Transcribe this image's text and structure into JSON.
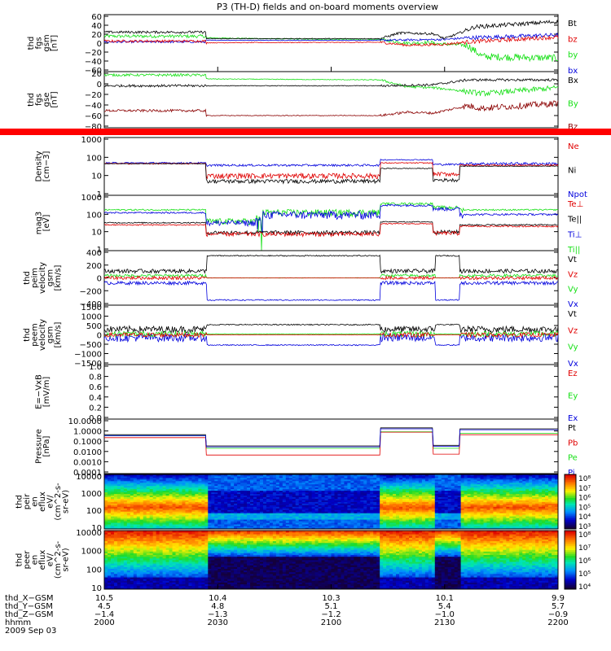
{
  "title": "P3 (TH-D) fields and on-board moments overview",
  "colors": {
    "black": "#000000",
    "red": "#e00000",
    "green": "#16e016",
    "blue": "#0000dd",
    "darkred": "#8b0000",
    "bar": "#ff0000"
  },
  "chart_data": [
    {
      "id": "fgs_gsm",
      "type": "line",
      "ylabel": [
        "thd",
        "fgs",
        "gsm",
        "[nT]"
      ],
      "yticks": [
        "60",
        "40",
        "20",
        "0",
        "−20",
        "−40",
        "−60"
      ],
      "ylim": [
        -75,
        65
      ],
      "legend": [
        {
          "name": "Bt",
          "color": "#000000"
        },
        {
          "name": "bz",
          "color": "#e00000"
        },
        {
          "name": "by",
          "color": "#16e016"
        },
        {
          "name": "bx",
          "color": "#0000dd"
        }
      ]
    },
    {
      "id": "fgs_gse",
      "type": "line",
      "ylabel": [
        "thd",
        "fgs",
        "gse",
        "[nT]"
      ],
      "yticks": [
        "20",
        "0",
        "−20",
        "−40",
        "−60",
        "−80"
      ],
      "ylim": [
        -90,
        25
      ],
      "legend": [
        {
          "name": "Bx",
          "color": "#000000"
        },
        {
          "name": "By",
          "color": "#16e016"
        },
        {
          "name": "Bz",
          "color": "#8b0000"
        }
      ]
    },
    {
      "id": "density",
      "type": "line",
      "ylabel": [
        "Density",
        "[cm−3]"
      ],
      "yticks": [
        "1000",
        "100",
        "10",
        "1"
      ],
      "ylim": [
        1,
        1500
      ],
      "yscale": "log",
      "legend": [
        {
          "name": "Ne",
          "color": "#e00000"
        },
        {
          "name": "Ni",
          "color": "#000000"
        },
        {
          "name": "Npot",
          "color": "#0000dd"
        }
      ]
    },
    {
      "id": "temperature",
      "type": "line",
      "ylabel": [
        "mag3",
        "[eV]"
      ],
      "yticks": [
        "1000",
        "100",
        "10",
        "1"
      ],
      "ylim": [
        1,
        1500
      ],
      "yscale": "log",
      "legend": [
        {
          "name": "Te⊥",
          "color": "#e00000"
        },
        {
          "name": "Te||",
          "color": "#000000"
        },
        {
          "name": "Ti⊥",
          "color": "#0000dd"
        },
        {
          "name": "Ti||",
          "color": "#16e016"
        }
      ]
    },
    {
      "id": "peim_velocity",
      "type": "line",
      "ylabel": [
        "thd",
        "peim",
        "velocity",
        "gsm",
        "[km/s]"
      ],
      "yticks": [
        "400",
        "200",
        "0",
        "−200",
        "−400"
      ],
      "ylim": [
        -480,
        480
      ],
      "legend": [
        {
          "name": "Vt",
          "color": "#000000"
        },
        {
          "name": "Vz",
          "color": "#e00000"
        },
        {
          "name": "Vy",
          "color": "#16e016"
        },
        {
          "name": "Vx",
          "color": "#0000dd"
        }
      ]
    },
    {
      "id": "peem_velocity",
      "type": "line",
      "ylabel": [
        "thd",
        "peem",
        "velocity",
        "gsm",
        "[km/s]"
      ],
      "yticks": [
        "1500",
        "1000",
        "500",
        "0",
        "−500",
        "−1000",
        "−1500"
      ],
      "ylim": [
        -1600,
        1600
      ],
      "legend": [
        {
          "name": "Vt",
          "color": "#000000"
        },
        {
          "name": "Vz",
          "color": "#e00000"
        },
        {
          "name": "Vy",
          "color": "#16e016"
        },
        {
          "name": "Vx",
          "color": "#0000dd"
        }
      ]
    },
    {
      "id": "efield",
      "type": "line",
      "ylabel": [
        "E=−VxB",
        "[mV/m]"
      ],
      "yticks": [
        "1.0",
        "0.8",
        "0.6",
        "0.4",
        "0.2",
        "0.0"
      ],
      "ylim": [
        0,
        1
      ],
      "legend": [
        {
          "name": "Ez",
          "color": "#e00000"
        },
        {
          "name": "Ey",
          "color": "#16e016"
        },
        {
          "name": "Ex",
          "color": "#0000dd"
        }
      ]
    },
    {
      "id": "pressure",
      "type": "line",
      "ylabel": [
        "Pressure",
        "[nPa]"
      ],
      "yticks": [
        "10.0000",
        "1.0000",
        "0.1000",
        "0.0100",
        "0.0010",
        "0.0001"
      ],
      "ylim": [
        5e-05,
        20
      ],
      "yscale": "log",
      "legend": [
        {
          "name": "Pt",
          "color": "#000000"
        },
        {
          "name": "Pb",
          "color": "#e00000"
        },
        {
          "name": "Pe",
          "color": "#16e016"
        },
        {
          "name": "Pi",
          "color": "#0000dd"
        }
      ]
    },
    {
      "id": "peir_spectrogram",
      "type": "heatmap",
      "ylabel": [
        "thd",
        "peir",
        "en",
        "eflux",
        "eV/",
        "(cm^2-s-",
        "sr-eV)"
      ],
      "yticks": [
        "10000",
        "1000",
        "100",
        "10"
      ],
      "ylim": [
        7,
        20000
      ],
      "yscale": "log",
      "colorbar_ticks": [
        "10⁸",
        "10⁷",
        "10⁶",
        "10⁵",
        "10⁴",
        "10³"
      ]
    },
    {
      "id": "peer_spectrogram",
      "type": "heatmap",
      "ylabel": [
        "thd",
        "peer",
        "en",
        "eflux",
        "eV/",
        "(cm^2-s-",
        "sr-eV)"
      ],
      "yticks": [
        "10000",
        "1000",
        "100",
        "10"
      ],
      "ylim": [
        7,
        20000
      ],
      "yscale": "log",
      "colorbar_ticks": [
        "10⁸",
        "10⁷",
        "10⁶",
        "10⁵",
        "10⁴"
      ]
    }
  ],
  "xaxis": {
    "rows": [
      {
        "label": "thd_X−GSM",
        "values": [
          "10.5",
          "10.4",
          "10.3",
          "10.1",
          "9.9"
        ]
      },
      {
        "label": "thd_Y−GSM",
        "values": [
          "4.5",
          "4.8",
          "5.1",
          "5.4",
          "5.7"
        ]
      },
      {
        "label": "thd_Z−GSM",
        "values": [
          "−1.4",
          "−1.3",
          "−1.2",
          "−1.0",
          "−0.9"
        ]
      },
      {
        "label": "hhmm",
        "values": [
          "2000",
          "2030",
          "2100",
          "2130",
          "2200"
        ]
      }
    ],
    "date": "2009 Sep 03",
    "time_range_minutes": [
      0,
      120
    ],
    "tick_minutes": [
      0,
      30,
      60,
      90,
      120
    ]
  }
}
